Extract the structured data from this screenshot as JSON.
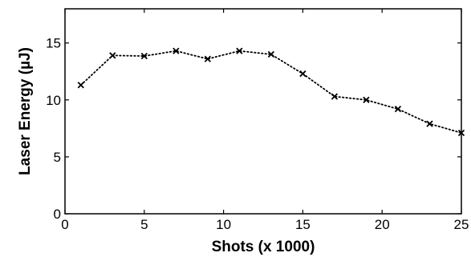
{
  "chart_data": {
    "type": "line",
    "title": "",
    "xlabel": "Shots (x 1000)",
    "ylabel": "Laser Energy (µJ)",
    "xlim": [
      0,
      25
    ],
    "ylim": [
      0,
      18
    ],
    "xticks": [
      0,
      5,
      10,
      15,
      20,
      25
    ],
    "yticks": [
      0,
      5,
      10,
      15
    ],
    "grid": false,
    "series": [
      {
        "marker": "x",
        "line_style": "dotted",
        "color": "#000000",
        "x": [
          1,
          3,
          5,
          7,
          9,
          11,
          13,
          15,
          17,
          19,
          21,
          23,
          25
        ],
        "y": [
          11.3,
          13.9,
          13.85,
          14.3,
          13.6,
          14.3,
          14.0,
          12.3,
          10.3,
          10.0,
          9.2,
          7.9,
          7.1
        ]
      }
    ]
  }
}
